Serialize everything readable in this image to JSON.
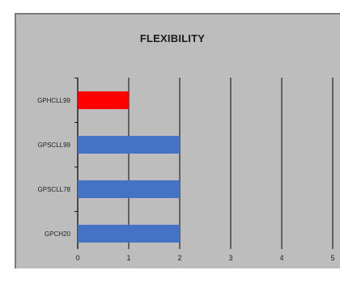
{
  "colors": {
    "highlight": "#ff0000",
    "bar": "#4472c4",
    "panel_bg": "#bdbdbd",
    "grid": "#1a1a1a"
  },
  "chart_data": {
    "type": "bar",
    "orientation": "horizontal",
    "title": "FLEXIBILITY",
    "xlabel": "",
    "ylabel": "",
    "categories": [
      "GPHCLL99",
      "GPSCLL99",
      "GPSCLL78",
      "GPCH20"
    ],
    "values": [
      1,
      2,
      2,
      2
    ],
    "bar_colors": [
      "#ff0000",
      "#4472c4",
      "#4472c4",
      "#4472c4"
    ],
    "xlim": [
      0,
      5
    ],
    "xticks": [
      "0",
      "1",
      "2",
      "3",
      "4",
      "5"
    ],
    "grid": "vertical",
    "legend": "none"
  }
}
